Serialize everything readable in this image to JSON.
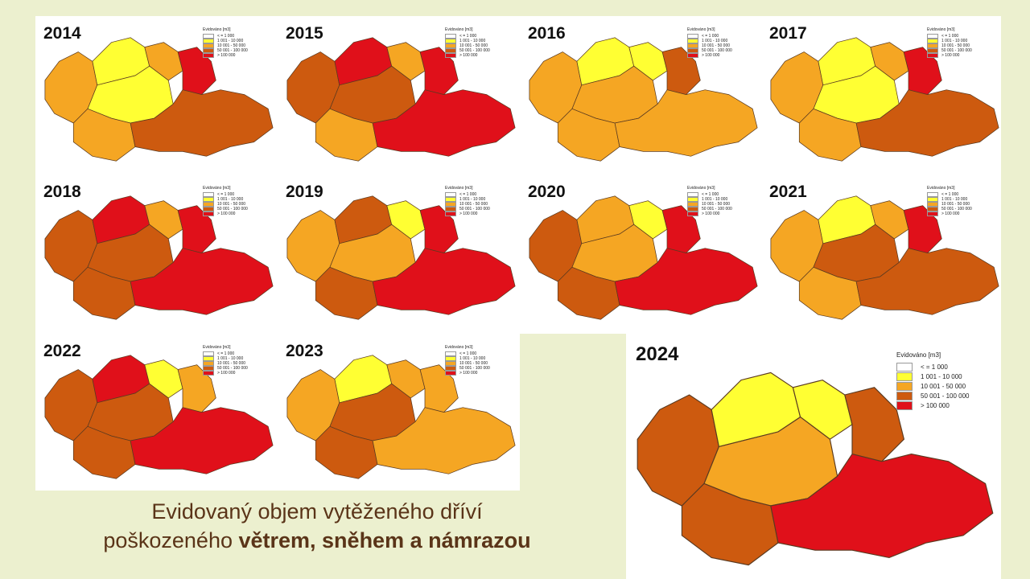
{
  "legend": {
    "title": "Evidováno [m3]",
    "items": [
      {
        "label": "<  =      1 000",
        "color": "#ffffff"
      },
      {
        "label": "1 001  -   10 000",
        "color": "#ffff33"
      },
      {
        "label": "10 001  -   50 000",
        "color": "#f5a623"
      },
      {
        "label": "50 001  -  100 000",
        "color": "#cd5a0f"
      },
      {
        "label": "> 100 000",
        "color": "#e0101a"
      }
    ]
  },
  "maps": [
    {
      "year": "2014",
      "colors": [
        "#f5a623",
        "#ffff33",
        "#f5a623",
        "#ffff33",
        "#e0101a",
        "#f5a623",
        "#cd5a0f"
      ]
    },
    {
      "year": "2015",
      "colors": [
        "#cd5a0f",
        "#e0101a",
        "#f5a623",
        "#cd5a0f",
        "#e0101a",
        "#f5a623",
        "#e0101a"
      ]
    },
    {
      "year": "2016",
      "colors": [
        "#f5a623",
        "#ffff33",
        "#ffff33",
        "#f5a623",
        "#cd5a0f",
        "#f5a623",
        "#f5a623"
      ]
    },
    {
      "year": "2017",
      "colors": [
        "#f5a623",
        "#ffff33",
        "#f5a623",
        "#ffff33",
        "#e0101a",
        "#f5a623",
        "#cd5a0f"
      ]
    },
    {
      "year": "2018",
      "colors": [
        "#cd5a0f",
        "#e0101a",
        "#f5a623",
        "#cd5a0f",
        "#e0101a",
        "#cd5a0f",
        "#e0101a"
      ]
    },
    {
      "year": "2019",
      "colors": [
        "#f5a623",
        "#cd5a0f",
        "#ffff33",
        "#f5a623",
        "#e0101a",
        "#cd5a0f",
        "#e0101a"
      ]
    },
    {
      "year": "2020",
      "colors": [
        "#cd5a0f",
        "#f5a623",
        "#ffff33",
        "#f5a623",
        "#e0101a",
        "#cd5a0f",
        "#e0101a"
      ]
    },
    {
      "year": "2021",
      "colors": [
        "#f5a623",
        "#ffff33",
        "#f5a623",
        "#cd5a0f",
        "#e0101a",
        "#f5a623",
        "#cd5a0f"
      ]
    },
    {
      "year": "2022",
      "colors": [
        "#cd5a0f",
        "#e0101a",
        "#ffff33",
        "#cd5a0f",
        "#f5a623",
        "#cd5a0f",
        "#e0101a"
      ]
    },
    {
      "year": "2023",
      "colors": [
        "#f5a623",
        "#ffff33",
        "#f5a623",
        "#cd5a0f",
        "#f5a623",
        "#cd5a0f",
        "#f5a623"
      ]
    },
    {
      "year": "2024",
      "colors": [
        "#cd5a0f",
        "#ffff33",
        "#ffff33",
        "#f5a623",
        "#cd5a0f",
        "#cd5a0f",
        "#e0101a"
      ]
    }
  ],
  "caption": {
    "line1": "Evidovaný objem vytěženého dříví",
    "line2_normal": "poškozeného ",
    "line2_bold": "větrem, sněhem a námrazou"
  }
}
